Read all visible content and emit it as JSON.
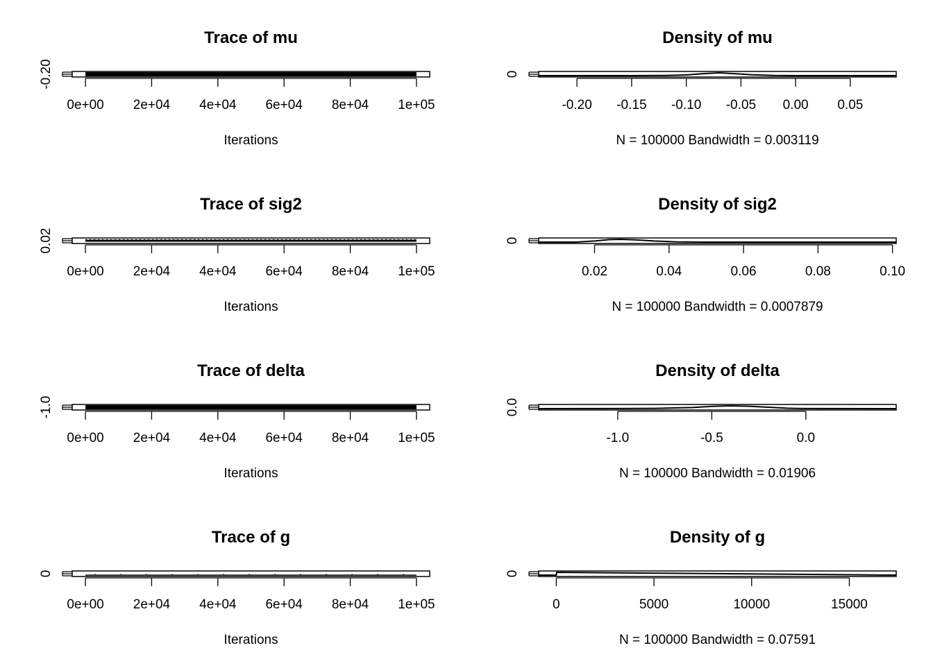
{
  "chart_data": [
    {
      "type": "line",
      "title": "Trace of mu",
      "xlabel": "Iterations",
      "ylabel": "",
      "xlim": [
        -4000,
        104000
      ],
      "x_ticks": [
        0,
        20000,
        40000,
        60000,
        80000,
        100000
      ],
      "x_tick_labels": [
        "0e+00",
        "2e+04",
        "4e+04",
        "6e+04",
        "8e+04",
        "1e+05"
      ],
      "y_tick_labels": [
        "-0.20"
      ],
      "series": [
        {
          "x": [
            0,
            100000
          ],
          "values": [
            -0.07,
            -0.07
          ]
        }
      ],
      "trace_fill": "dense"
    },
    {
      "type": "line",
      "title": "Density of mu",
      "xlabel": "N = 100000   Bandwidth = 0.003119",
      "ylabel": "",
      "xlim": [
        -0.235,
        0.092
      ],
      "x_ticks": [
        -0.2,
        -0.15,
        -0.1,
        -0.05,
        0.0,
        0.05
      ],
      "x_tick_labels": [
        "-0.20",
        "-0.15",
        "-0.10",
        "-0.05",
        "0.00",
        "0.05"
      ],
      "y_tick_labels": [
        "0"
      ],
      "series": [
        {
          "x": [
            -0.235,
            -0.15,
            -0.12,
            -0.1,
            -0.085,
            -0.07,
            -0.055,
            -0.04,
            -0.02,
            0.0,
            0.092
          ],
          "values": [
            0,
            0,
            0.05,
            0.25,
            0.7,
            1.0,
            0.7,
            0.3,
            0.05,
            0,
            0
          ]
        }
      ]
    },
    {
      "type": "line",
      "title": "Trace of sig2",
      "xlabel": "Iterations",
      "ylabel": "",
      "xlim": [
        -4000,
        104000
      ],
      "x_ticks": [
        0,
        20000,
        40000,
        60000,
        80000,
        100000
      ],
      "x_tick_labels": [
        "0e+00",
        "2e+04",
        "4e+04",
        "6e+04",
        "8e+04",
        "1e+05"
      ],
      "y_tick_labels": [
        "0.02"
      ],
      "series": [
        {
          "x": [
            0,
            100000
          ],
          "values": [
            0.027,
            0.027
          ]
        }
      ],
      "trace_fill": "medium"
    },
    {
      "type": "line",
      "title": "Density of sig2",
      "xlabel": "N = 100000   Bandwidth = 0.0007879",
      "ylabel": "",
      "xlim": [
        0.005,
        0.101
      ],
      "x_ticks": [
        0.02,
        0.04,
        0.06,
        0.08,
        0.1
      ],
      "x_tick_labels": [
        "0.02",
        "0.04",
        "0.06",
        "0.08",
        "0.10"
      ],
      "y_tick_labels": [
        "0"
      ],
      "series": [
        {
          "x": [
            0.005,
            0.015,
            0.02,
            0.024,
            0.027,
            0.031,
            0.036,
            0.042,
            0.05,
            0.101
          ],
          "values": [
            0,
            0,
            0.4,
            0.9,
            1.0,
            0.8,
            0.4,
            0.1,
            0,
            0
          ]
        }
      ]
    },
    {
      "type": "line",
      "title": "Trace of delta",
      "xlabel": "Iterations",
      "ylabel": "",
      "xlim": [
        -4000,
        104000
      ],
      "x_ticks": [
        0,
        20000,
        40000,
        60000,
        80000,
        100000
      ],
      "x_tick_labels": [
        "0e+00",
        "2e+04",
        "4e+04",
        "6e+04",
        "8e+04",
        "1e+05"
      ],
      "y_tick_labels": [
        "-1.0"
      ],
      "series": [
        {
          "x": [
            0,
            100000
          ],
          "values": [
            -0.4,
            -0.4
          ]
        }
      ],
      "trace_fill": "dense"
    },
    {
      "type": "line",
      "title": "Density of delta",
      "xlabel": "N = 100000   Bandwidth = 0.01906",
      "ylabel": "",
      "xlim": [
        -1.42,
        0.48
      ],
      "x_ticks": [
        -1.0,
        -0.5,
        0.0
      ],
      "x_tick_labels": [
        "-1.0",
        "-0.5",
        "0.0"
      ],
      "y_tick_labels": [
        "0.0"
      ],
      "series": [
        {
          "x": [
            -1.42,
            -1.0,
            -0.8,
            -0.6,
            -0.5,
            -0.4,
            -0.3,
            -0.2,
            -0.1,
            0.0,
            0.48
          ],
          "values": [
            0,
            0.02,
            0.1,
            0.4,
            0.8,
            1.0,
            0.85,
            0.5,
            0.15,
            0.02,
            0
          ]
        }
      ]
    },
    {
      "type": "line",
      "title": "Trace of g",
      "xlabel": "Iterations",
      "ylabel": "",
      "xlim": [
        -4000,
        104000
      ],
      "x_ticks": [
        0,
        20000,
        40000,
        60000,
        80000,
        100000
      ],
      "x_tick_labels": [
        "0e+00",
        "2e+04",
        "4e+04",
        "6e+04",
        "8e+04",
        "1e+05"
      ],
      "y_tick_labels": [
        "0"
      ],
      "series": [
        {
          "x": [
            0,
            100000
          ],
          "values": [
            0,
            0
          ]
        }
      ],
      "trace_fill": "sparse"
    },
    {
      "type": "line",
      "title": "Density of g",
      "xlabel": "N = 100000   Bandwidth = 0.07591",
      "ylabel": "",
      "xlim": [
        -900,
        17400
      ],
      "x_ticks": [
        0,
        5000,
        10000,
        15000
      ],
      "x_tick_labels": [
        "0",
        "5000",
        "10000",
        "15000"
      ],
      "y_tick_labels": [
        "0"
      ],
      "series": [
        {
          "x": [
            -900,
            0,
            20,
            17400
          ],
          "values": [
            0,
            0,
            0.02,
            0
          ]
        }
      ]
    }
  ]
}
